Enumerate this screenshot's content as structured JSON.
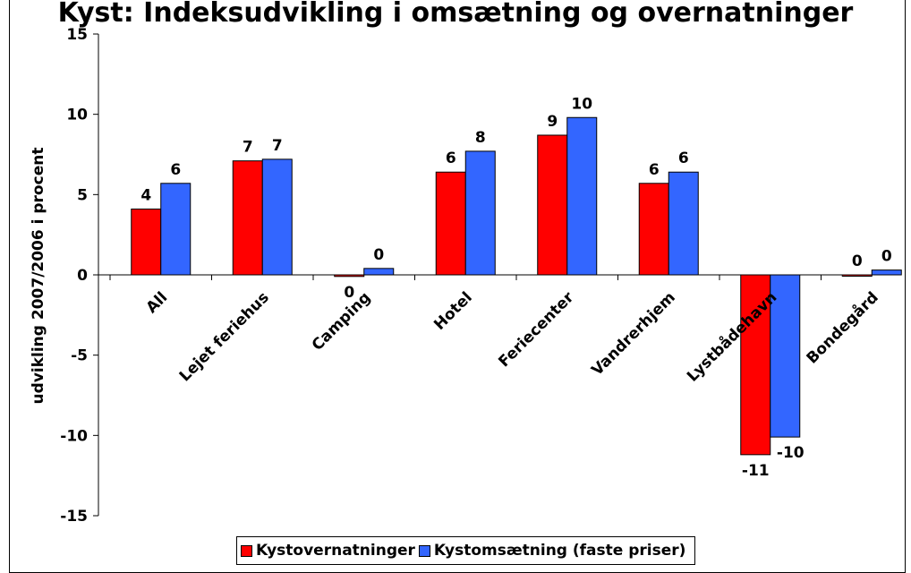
{
  "chart_data": {
    "type": "bar",
    "title": "Kyst: Indeksudvikling i omsætning og overnatninger",
    "ylabel": "udvikling 2007/2006 i procent",
    "ylim": [
      -15,
      15
    ],
    "yticks": [
      15,
      10,
      5,
      0,
      -5,
      -10,
      -15
    ],
    "grid": false,
    "legend_position": "bottom",
    "categories": [
      "All",
      "Lejet feriehus",
      "Camping",
      "Hotel",
      "Feriecenter",
      "Vandrerhjem",
      "Lystbådehavn",
      "Bondegård"
    ],
    "series": [
      {
        "name": "Kystovernatninger",
        "color": "#ff0000",
        "values": [
          4.1,
          7.1,
          -0.1,
          6.4,
          8.7,
          5.7,
          -11.2,
          0.0
        ],
        "labels": [
          "4",
          "7",
          "0",
          "6",
          "9",
          "6",
          "-11",
          "0"
        ]
      },
      {
        "name": "Kystomsætning (faste priser)",
        "color": "#3366ff",
        "values": [
          5.7,
          7.2,
          0.4,
          7.7,
          9.8,
          6.4,
          -10.1,
          0.3
        ],
        "labels": [
          "6",
          "7",
          "0",
          "8",
          "10",
          "6",
          "-10",
          "0"
        ]
      }
    ]
  }
}
